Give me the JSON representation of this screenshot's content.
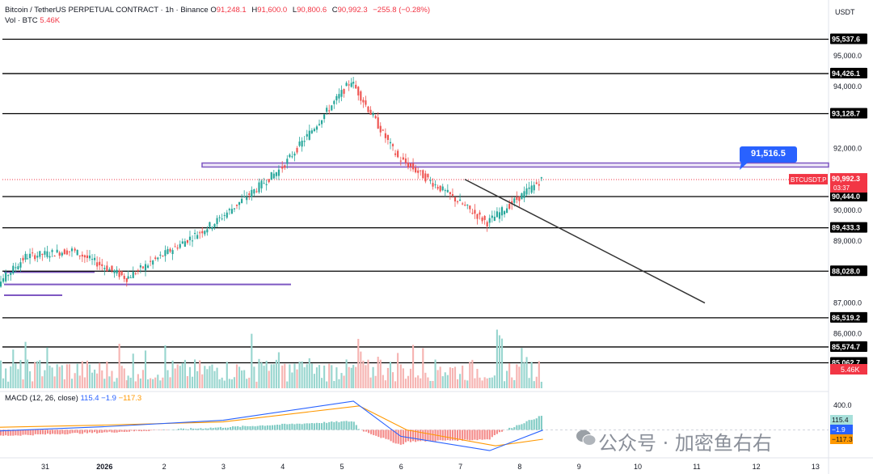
{
  "header": {
    "title": "Bitcoin / TetherUS PERPETUAL CONTRACT · 1h · Binance",
    "o_label": "O",
    "o": "91,248.1",
    "h_label": "H",
    "h": "91,600.0",
    "l_label": "L",
    "l": "90,800.6",
    "c_label": "C",
    "c": "90,992.3",
    "change": "−255.8 (−0.28%)",
    "vol_label": "Vol · BTC",
    "vol_value": "5.46K"
  },
  "watermark": "公众号 · 加密鱼右右",
  "macd": {
    "label": "MACD (12, 26, close)",
    "hist_value": "115.4",
    "macd_value": "−1.9",
    "signal_value": "−117.3",
    "axis_max_label": "400.0",
    "badges": [
      "115.4",
      "−1.9",
      "−117.3"
    ]
  },
  "colors": {
    "up": "#26a69a",
    "down": "#ef5350",
    "level_line": "#000000",
    "zone": "#7e57c2",
    "trend": "#333333",
    "macd_line": "#2962ff",
    "signal_line": "#ff9800",
    "price_badge": "#f23645",
    "marker_badge": "#2962ff"
  },
  "chart_data": {
    "type": "candlestick",
    "currency": "USDT",
    "y_ticks": [
      "95,000.0",
      "94,000.0",
      "92,000.0",
      "90,000.0",
      "89,000.0",
      "87,000.0",
      "86,000.0",
      "85,000.0"
    ],
    "x_ticks": [
      "31",
      "2026",
      "2",
      "3",
      "4",
      "5",
      "6",
      "7",
      "8",
      "9",
      "10",
      "11",
      "12",
      "13"
    ],
    "ylim": [
      84500,
      96100
    ],
    "horizontal_levels": [
      95537.6,
      94426.1,
      93128.7,
      90444.0,
      89433.3,
      88028.0,
      86519.2,
      85574.7,
      85062.7
    ],
    "horizontal_level_labels": [
      "95,537.6",
      "94,426.1",
      "93,128.7",
      "90,444.0",
      "89,433.3",
      "88,028.0",
      "86,519.2",
      "85,574.7",
      "85,062.7"
    ],
    "resistance_zone": {
      "from": 91400,
      "to": 91530
    },
    "marker": {
      "value": 91516.5,
      "label": "91,516.5"
    },
    "last_price": {
      "symbol": "BTCUSDT.P",
      "value": "90,992.3",
      "countdown": "03:37",
      "volume": "5.46K"
    },
    "candle_key_points": [
      {
        "day": 30.0,
        "price": 87150
      },
      {
        "day": 30.7,
        "price": 88500
      },
      {
        "day": 31.5,
        "price": 88700
      },
      {
        "day": 32.4,
        "price": 87800
      },
      {
        "day": 33.9,
        "price": 89600
      },
      {
        "day": 35.0,
        "price": 91300
      },
      {
        "day": 36.2,
        "price": 94200
      },
      {
        "day": 37.0,
        "price": 91700
      },
      {
        "day": 38.5,
        "price": 89600
      },
      {
        "day": 39.4,
        "price": 90990
      }
    ],
    "macd_series": {
      "macd_points": [
        [
          30.0,
          -20
        ],
        [
          32.0,
          40
        ],
        [
          34.0,
          120
        ],
        [
          36.2,
          360
        ],
        [
          37.0,
          -80
        ],
        [
          38.5,
          -260
        ],
        [
          39.4,
          -2
        ]
      ],
      "signal_points": [
        [
          30.0,
          30
        ],
        [
          32.0,
          60
        ],
        [
          34.0,
          100
        ],
        [
          36.3,
          300
        ],
        [
          37.1,
          0
        ],
        [
          38.6,
          -200
        ],
        [
          39.4,
          -117
        ]
      ]
    }
  }
}
